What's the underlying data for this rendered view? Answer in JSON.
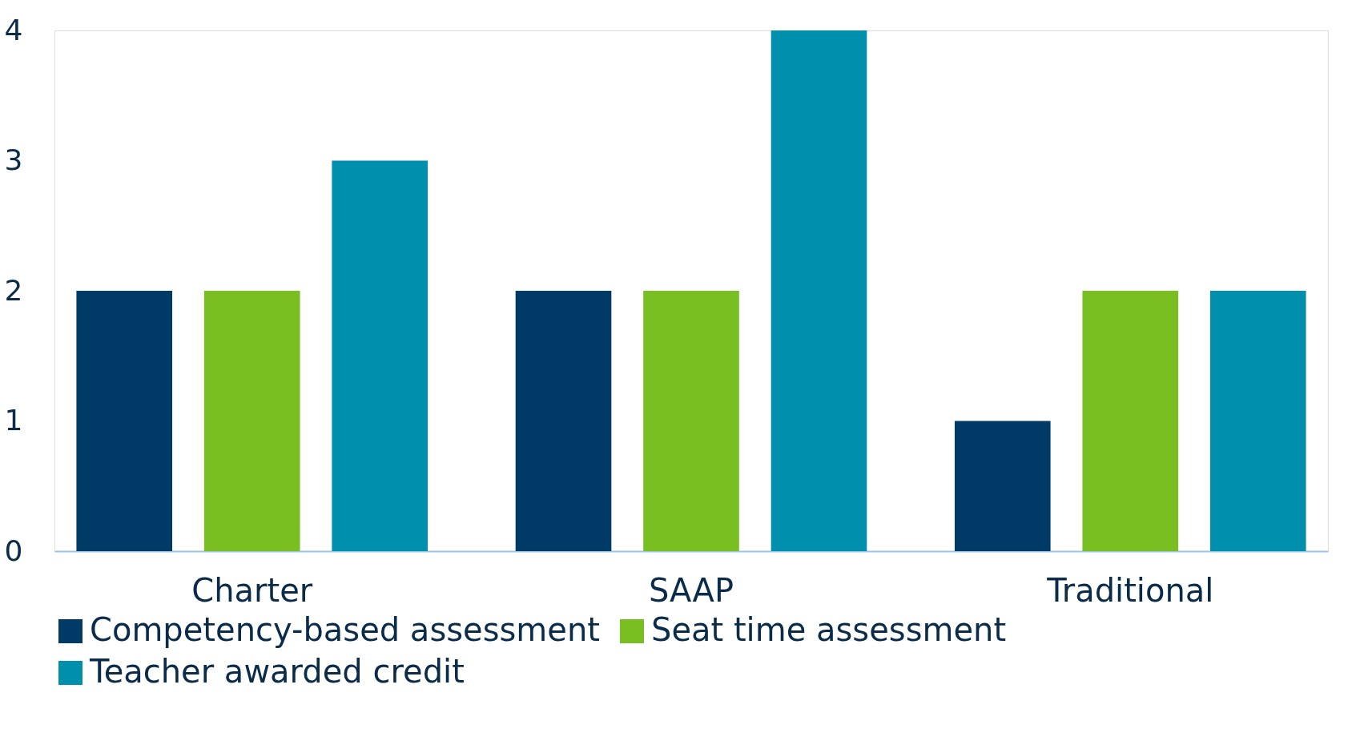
{
  "chart_data": {
    "type": "bar",
    "categories": [
      "Charter",
      "SAAP",
      "Traditional"
    ],
    "series": [
      {
        "name": "Competency-based assessment",
        "color": "#003a66",
        "values": [
          2,
          2,
          1
        ]
      },
      {
        "name": "Seat time assessment",
        "color": "#7abf21",
        "values": [
          2,
          2,
          2
        ]
      },
      {
        "name": "Teacher awarded credit",
        "color": "#0090ad",
        "values": [
          3,
          4,
          2
        ]
      }
    ],
    "ylim": [
      0,
      4
    ],
    "yticks": [
      0,
      1,
      2,
      3,
      4
    ],
    "legend": "bottom"
  }
}
